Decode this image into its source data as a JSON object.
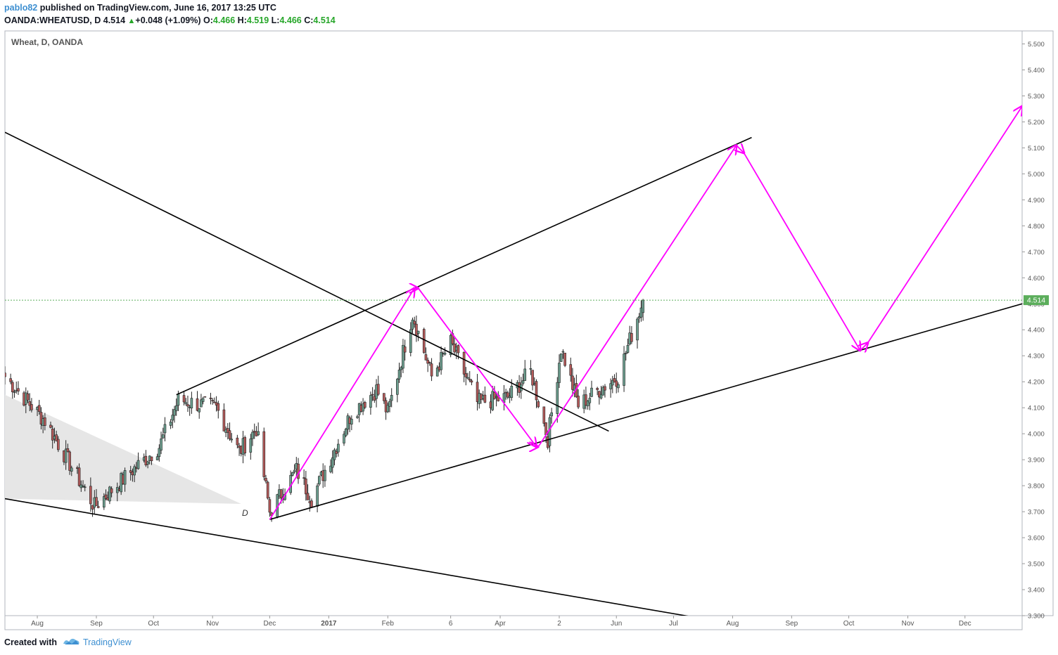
{
  "header": {
    "author": "pablo82",
    "published_text": " published on TradingView.com, June 16, 2017 13:25 UTC",
    "symbol": "OANDA:WHEATUSD, D",
    "last": "4.514",
    "change": "+0.048 (+1.09%)",
    "open_label": "O:",
    "open": "4.466",
    "high_label": "H:",
    "high": "4.519",
    "low_label": "L:",
    "low": "4.466",
    "close_label": "C:",
    "close": "4.514"
  },
  "chart_data": {
    "type": "candlestick",
    "title": "Wheat, D, OANDA",
    "ylim": [
      3.3,
      5.55
    ],
    "y_ticks": [
      "5.500",
      "5.400",
      "5.300",
      "5.200",
      "5.100",
      "5.000",
      "4.900",
      "4.800",
      "4.700",
      "4.600",
      "4.500",
      "4.400",
      "4.300",
      "4.200",
      "4.100",
      "4.000",
      "3.900",
      "3.800",
      "3.700",
      "3.600",
      "3.500",
      "3.400",
      "3.300"
    ],
    "x_ticks": [
      "Aug",
      "Sep",
      "Oct",
      "Nov",
      "Dec",
      "2017",
      "Feb",
      "6",
      "Apr",
      "2",
      "Jun",
      "Jul",
      "Aug",
      "Sep",
      "Oct",
      "Nov",
      "Dec"
    ],
    "last_price_label": "4.514",
    "annotation": "D",
    "colors": {
      "up": "#6b9e8e",
      "down": "#b55a5a",
      "trend": "#000000",
      "projection": "#ff00ff",
      "last_price": "#5cae5c",
      "grid": "#e0e3eb"
    },
    "anchors": [
      {
        "date": "2016-07-15",
        "price": 4.22
      },
      {
        "date": "2016-08-05",
        "price": 4.05
      },
      {
        "date": "2016-08-31",
        "price": 3.72
      },
      {
        "date": "2016-09-20",
        "price": 3.86
      },
      {
        "date": "2016-10-04",
        "price": 3.95
      },
      {
        "date": "2016-10-14",
        "price": 4.13
      },
      {
        "date": "2016-11-03",
        "price": 4.1
      },
      {
        "date": "2016-11-15",
        "price": 3.93
      },
      {
        "date": "2016-11-24",
        "price": 4.02
      },
      {
        "date": "2016-12-01",
        "price": 3.7
      },
      {
        "date": "2016-12-15",
        "price": 3.86
      },
      {
        "date": "2016-12-23",
        "price": 3.75
      },
      {
        "date": "2017-01-13",
        "price": 4.08
      },
      {
        "date": "2017-01-26",
        "price": 4.17
      },
      {
        "date": "2017-02-01",
        "price": 4.08
      },
      {
        "date": "2017-02-14",
        "price": 4.46
      },
      {
        "date": "2017-02-24",
        "price": 4.22
      },
      {
        "date": "2017-03-06",
        "price": 4.35
      },
      {
        "date": "2017-03-20",
        "price": 4.12
      },
      {
        "date": "2017-04-05",
        "price": 4.14
      },
      {
        "date": "2017-04-17",
        "price": 4.24
      },
      {
        "date": "2017-04-26",
        "price": 3.98
      },
      {
        "date": "2017-05-03",
        "price": 4.33
      },
      {
        "date": "2017-05-12",
        "price": 4.11
      },
      {
        "date": "2017-05-23",
        "price": 4.17
      },
      {
        "date": "2017-06-02",
        "price": 4.22
      },
      {
        "date": "2017-06-08",
        "price": 4.36
      },
      {
        "date": "2017-06-15",
        "price": 4.514
      }
    ],
    "trendlines": [
      {
        "from": {
          "date": "2016-07-15",
          "price": 5.16
        },
        "to": {
          "date": "2017-05-28",
          "price": 4.01
        }
      },
      {
        "from": {
          "date": "2016-07-15",
          "price": 3.75
        },
        "to": {
          "date": "2017-07-15",
          "price": 3.29
        }
      },
      {
        "from": {
          "date": "2016-10-13",
          "price": 4.15
        },
        "to": {
          "date": "2017-08-11",
          "price": 5.14
        }
      },
      {
        "from": {
          "date": "2016-12-01",
          "price": 3.67
        },
        "to": {
          "date": "2017-12-31",
          "price": 4.5
        }
      }
    ],
    "projection_path": [
      {
        "date": "2016-12-01",
        "price": 3.67
      },
      {
        "date": "2017-02-15",
        "price": 4.56
      },
      {
        "date": "2017-02-17",
        "price": 4.56
      },
      {
        "date": "2017-04-20",
        "price": 3.95
      },
      {
        "date": "2017-04-21",
        "price": 3.95
      },
      {
        "date": "2017-08-03",
        "price": 5.11
      },
      {
        "date": "2017-08-07",
        "price": 5.08
      },
      {
        "date": "2017-10-07",
        "price": 4.32
      },
      {
        "date": "2017-10-11",
        "price": 4.35
      },
      {
        "date": "2017-12-31",
        "price": 5.26
      }
    ],
    "gray_triangle": [
      {
        "date": "2016-07-15",
        "price": 4.15
      },
      {
        "date": "2016-11-16",
        "price": 3.73
      },
      {
        "date": "2016-07-15",
        "price": 3.75
      }
    ]
  },
  "footer": {
    "created_with": "Created with",
    "brand": "TradingView"
  }
}
